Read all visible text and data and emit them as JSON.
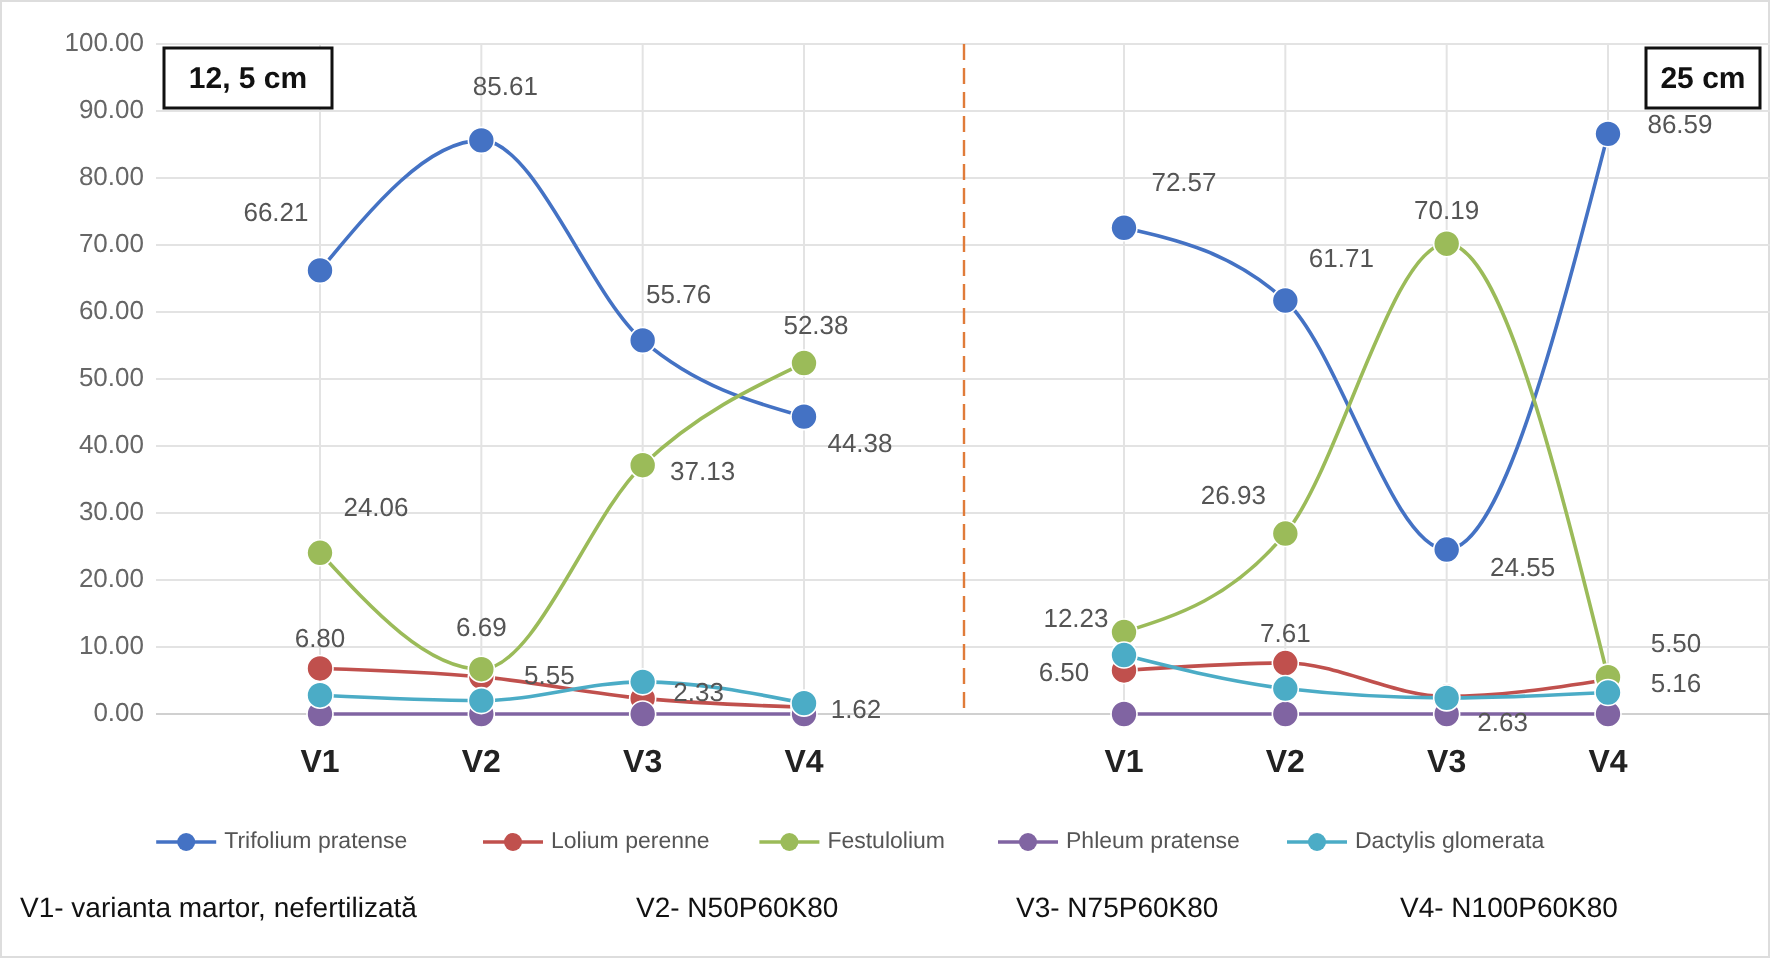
{
  "chart_data": [
    {
      "type": "line",
      "title": "12, 5 cm",
      "categories": [
        "V1",
        "V2",
        "V3",
        "V4"
      ],
      "ylim": [
        0,
        100
      ],
      "yticks": [
        {
          "value": 0,
          "label": "0.00"
        },
        {
          "value": 10,
          "label": "10.00"
        },
        {
          "value": 20,
          "label": "20.00"
        },
        {
          "value": 30,
          "label": "30.00"
        },
        {
          "value": 40,
          "label": "40.00"
        },
        {
          "value": 50,
          "label": "50.00"
        },
        {
          "value": 60,
          "label": "60.00"
        },
        {
          "value": 70,
          "label": "70.00"
        },
        {
          "value": 80,
          "label": "80.00"
        },
        {
          "value": 90,
          "label": "90.00"
        },
        {
          "value": 100,
          "label": "100.00"
        }
      ],
      "grid": true,
      "legend": "bottom",
      "marker": "circle",
      "line_style": "solid",
      "annotations": [
        "V1- varianta martor, nefertilizată",
        "V2- N50P60K80",
        "V3- N75P60K80",
        "V4- N100P60K80"
      ],
      "series": [
        {
          "name": "Trifolium pratense",
          "color": "#4472c4",
          "values": [
            66.21,
            85.61,
            55.76,
            44.38
          ],
          "value_labels": [
            "66.21",
            "85.61",
            "55.76",
            "44.38"
          ]
        },
        {
          "name": "Lolium perenne",
          "color": "#c0504d",
          "values": [
            6.8,
            5.55,
            2.33,
            1.0
          ],
          "value_labels": [
            "6.80",
            "5.55",
            "2.33",
            null
          ]
        },
        {
          "name": "Festulolium",
          "color": "#9bbb59",
          "values": [
            24.06,
            6.69,
            37.13,
            52.38
          ],
          "value_labels": [
            "24.06",
            "6.69",
            "37.13",
            "52.38"
          ]
        },
        {
          "name": "Phleum pratense",
          "color": "#8064a2",
          "values": [
            0,
            0,
            0,
            0
          ]
        },
        {
          "name": "Dactylis glomerata",
          "color": "#4bacc6",
          "values": [
            2.8,
            2.0,
            4.8,
            1.62
          ],
          "value_labels": [
            null,
            null,
            null,
            "1.62"
          ]
        }
      ]
    },
    {
      "type": "line",
      "title": "25 cm",
      "categories": [
        "V1",
        "V2",
        "V3",
        "V4"
      ],
      "ylim": [
        0,
        100
      ],
      "yticks": [
        0,
        10,
        20,
        30,
        40,
        50,
        60,
        70,
        80,
        90,
        100
      ],
      "tick_labels": "x",
      "grid": true,
      "marker": "circle",
      "line_style": "solid",
      "series": [
        {
          "color": "#4472c4",
          "values": [
            72.57,
            61.71,
            24.55,
            86.59
          ],
          "value_labels": [
            "72.57",
            "61.71",
            "24.55",
            "86.59"
          ]
        },
        {
          "color": "#c0504d",
          "values": [
            6.5,
            7.61,
            2.63,
            5.16
          ],
          "value_labels": [
            "6.50",
            "7.61",
            "2.63",
            "5.16"
          ]
        },
        {
          "color": "#9bbb59",
          "values": [
            12.23,
            26.93,
            70.19,
            5.5
          ],
          "value_labels": [
            "12.23",
            "26.93",
            "70.19",
            "5.50"
          ]
        },
        {
          "color": "#8064a2",
          "values": [
            0,
            0,
            0,
            0
          ]
        },
        {
          "color": "#4bacc6",
          "values": [
            8.8,
            3.8,
            2.4,
            3.2
          ]
        }
      ]
    }
  ]
}
